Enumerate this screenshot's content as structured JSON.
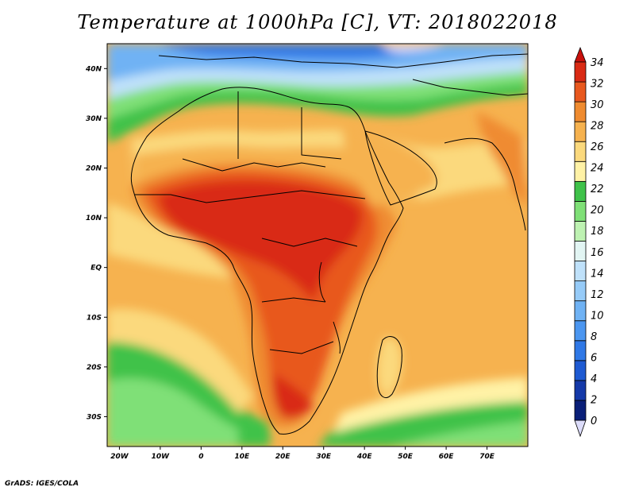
{
  "title": "Temperature at 1000hPa [C], VT: 2018022018",
  "credit": "GrADS: IGES/COLA",
  "map": {
    "lat_range": [
      -36,
      45
    ],
    "lon_range": [
      -23,
      80
    ],
    "lat_ticks": [
      {
        "value": 40,
        "label": "40N"
      },
      {
        "value": 30,
        "label": "30N"
      },
      {
        "value": 20,
        "label": "20N"
      },
      {
        "value": 10,
        "label": "10N"
      },
      {
        "value": 0,
        "label": "EQ"
      },
      {
        "value": -10,
        "label": "10S"
      },
      {
        "value": -20,
        "label": "20S"
      },
      {
        "value": -30,
        "label": "30S"
      }
    ],
    "lon_ticks": [
      {
        "value": -20,
        "label": "20W"
      },
      {
        "value": -10,
        "label": "10W"
      },
      {
        "value": 0,
        "label": "0"
      },
      {
        "value": 10,
        "label": "10E"
      },
      {
        "value": 20,
        "label": "20E"
      },
      {
        "value": 30,
        "label": "30E"
      },
      {
        "value": 40,
        "label": "40E"
      },
      {
        "value": 50,
        "label": "50E"
      },
      {
        "value": 60,
        "label": "60E"
      },
      {
        "value": 70,
        "label": "70E"
      }
    ]
  },
  "colorbar": {
    "labels": [
      "0",
      "2",
      "4",
      "6",
      "8",
      "10",
      "12",
      "14",
      "16",
      "18",
      "20",
      "22",
      "24",
      "26",
      "28",
      "30",
      "32",
      "34"
    ],
    "colors": [
      "#0a1f78",
      "#1439a8",
      "#1e5ad2",
      "#2f78e6",
      "#4b96f0",
      "#6fb2f4",
      "#96cbf8",
      "#bfe1fa",
      "#e2f5f3",
      "#bef2b2",
      "#7fe077",
      "#3fc24a",
      "#fff2a6",
      "#fbd97d",
      "#f6b24f",
      "#ef8b30",
      "#e8581e",
      "#d92a14"
    ],
    "over_color": "#c8100c",
    "under_color": "#dcdcfa"
  }
}
